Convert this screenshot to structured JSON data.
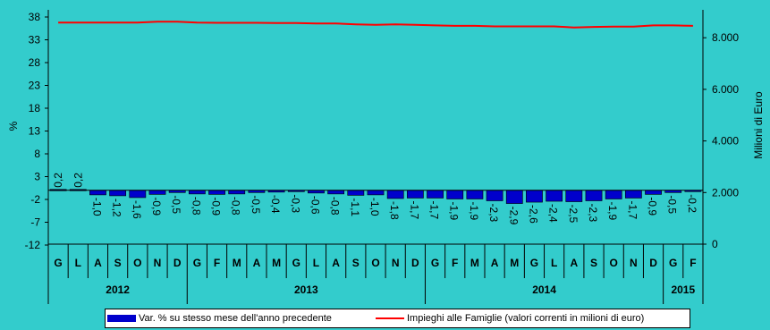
{
  "chart_data": {
    "type": "bar+line",
    "yleft": {
      "label": "%",
      "ticks": [
        38,
        33,
        28,
        23,
        18,
        13,
        8,
        3,
        -2,
        -7,
        -12
      ],
      "range": [
        -12,
        40
      ]
    },
    "yright": {
      "label": "Milioni di Euro",
      "ticks": [
        "8.000",
        "6.000",
        "4.000",
        "2.000",
        "0"
      ],
      "range": [
        0,
        8800
      ]
    },
    "months": [
      "G",
      "L",
      "A",
      "S",
      "O",
      "N",
      "D",
      "G",
      "F",
      "M",
      "A",
      "M",
      "G",
      "L",
      "A",
      "S",
      "O",
      "N",
      "D",
      "G",
      "F",
      "M",
      "A",
      "M",
      "G",
      "L",
      "A",
      "S",
      "O",
      "N",
      "D",
      "G",
      "F"
    ],
    "years": [
      {
        "label": "2012",
        "span": 7
      },
      {
        "label": "2013",
        "span": 12
      },
      {
        "label": "2014",
        "span": 12
      },
      {
        "label": "2015",
        "span": 2
      }
    ],
    "series": [
      {
        "name": "Var. % su stesso mese dell'anno precedente",
        "type": "bar",
        "color": "#0000CC",
        "axis": "left",
        "values": [
          0.2,
          0.2,
          -1.0,
          -1.2,
          -1.6,
          -0.9,
          -0.5,
          -0.8,
          -0.9,
          -0.8,
          -0.5,
          -0.4,
          -0.3,
          -0.6,
          -0.8,
          -1.1,
          -1.0,
          -1.8,
          -1.7,
          -1.7,
          -1.9,
          -1.9,
          -2.3,
          -2.9,
          -2.6,
          -2.4,
          -2.5,
          -2.3,
          -1.9,
          -1.7,
          -0.9,
          -0.5,
          -0.2
        ],
        "labels": [
          "0,2",
          "0,2",
          "-1,0",
          "-1,2",
          "-1,6",
          "-0,9",
          "-0,5",
          "-0,8",
          "-0,9",
          "-0,8",
          "-0,5",
          "-0,4",
          "-0,3",
          "-0,6",
          "-0,8",
          "-1,1",
          "-1,0",
          "-1,8",
          "-1,7",
          "-1,7",
          "-1,9",
          "-1,9",
          "-2,3",
          "-2,9",
          "-2,6",
          "-2,4",
          "-2,5",
          "-2,3",
          "-1,9",
          "-1,7",
          "-0,9",
          "-0,5",
          "-0,2"
        ]
      },
      {
        "name": "Impieghi alle Famiglie (valori correnti in milioni di euro)",
        "type": "line",
        "color": "#FF0000",
        "axis": "right",
        "values": [
          8590,
          8590,
          8590,
          8590,
          8590,
          8620,
          8620,
          8590,
          8580,
          8580,
          8580,
          8570,
          8570,
          8550,
          8550,
          8520,
          8500,
          8520,
          8500,
          8480,
          8460,
          8460,
          8440,
          8440,
          8440,
          8440,
          8400,
          8420,
          8430,
          8430,
          8480,
          8480,
          8460
        ]
      }
    ]
  }
}
